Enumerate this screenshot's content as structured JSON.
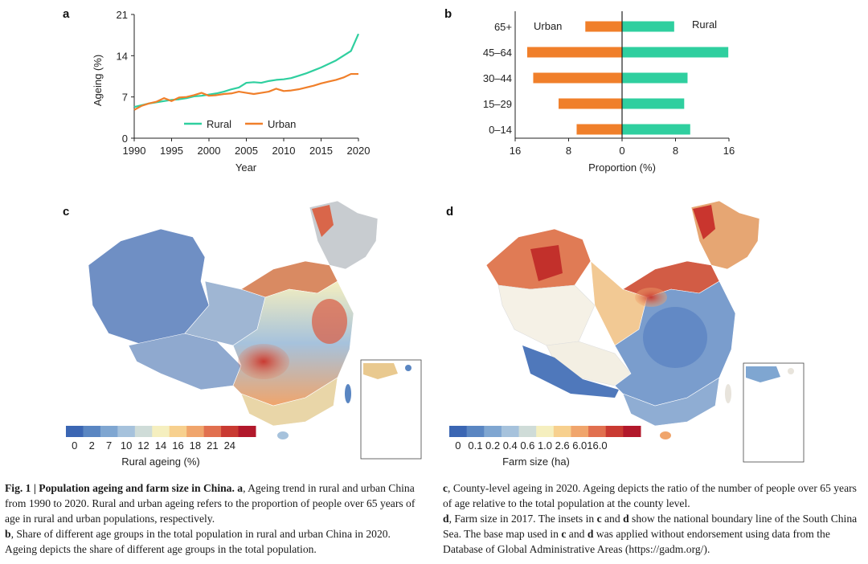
{
  "panels": {
    "a": "a",
    "b": "b",
    "c": "c",
    "d": "d"
  },
  "chart_data": [
    {
      "type": "line",
      "panel": "a",
      "xlabel": "Year",
      "ylabel": "Ageing (%)",
      "xlim": [
        1990,
        2020
      ],
      "ylim": [
        0,
        21
      ],
      "xticks": [
        "1990",
        "1995",
        "2000",
        "2005",
        "2010",
        "2015",
        "2020"
      ],
      "yticks": [
        "0",
        "7",
        "14",
        "21"
      ],
      "x": [
        1990,
        1991,
        1992,
        1993,
        1994,
        1995,
        1996,
        1997,
        1998,
        1999,
        2000,
        2001,
        2002,
        2003,
        2004,
        2005,
        2006,
        2007,
        2008,
        2009,
        2010,
        2011,
        2012,
        2013,
        2014,
        2015,
        2016,
        2017,
        2018,
        2019,
        2020
      ],
      "series": [
        {
          "name": "Rural",
          "color": "#2fcf9f",
          "values": [
            5.3,
            5.6,
            5.9,
            6.1,
            6.3,
            6.5,
            6.6,
            6.8,
            7.1,
            7.2,
            7.4,
            7.6,
            7.9,
            8.3,
            8.6,
            9.4,
            9.5,
            9.4,
            9.7,
            9.9,
            10.0,
            10.2,
            10.6,
            11.0,
            11.5,
            12.0,
            12.6,
            13.2,
            14.0,
            14.8,
            17.7
          ]
        },
        {
          "name": "Urban",
          "color": "#f07f2a",
          "values": [
            4.8,
            5.5,
            5.9,
            6.2,
            6.8,
            6.3,
            6.9,
            7.0,
            7.3,
            7.7,
            7.2,
            7.3,
            7.5,
            7.6,
            7.9,
            7.7,
            7.5,
            7.7,
            7.9,
            8.4,
            8.0,
            8.1,
            8.3,
            8.6,
            8.9,
            9.3,
            9.6,
            9.9,
            10.3,
            10.9,
            10.9
          ]
        }
      ],
      "legend": [
        {
          "label": "Rural",
          "color": "#2fcf9f"
        },
        {
          "label": "Urban",
          "color": "#f07f2a"
        }
      ]
    },
    {
      "type": "bar",
      "panel": "b",
      "orientation": "horizontal",
      "xlabel": "Proportion (%)",
      "xticks": [
        "16",
        "8",
        "0",
        "8",
        "16"
      ],
      "categories": [
        "65+",
        "45–64",
        "30–44",
        "15–29",
        "0–14"
      ],
      "series": [
        {
          "name": "Urban",
          "color": "#f07f2a",
          "values": [
            5.5,
            14.2,
            13.3,
            9.5,
            6.8
          ]
        },
        {
          "name": "Rural",
          "color": "#2fcf9f",
          "values": [
            7.8,
            15.9,
            9.8,
            9.3,
            10.2
          ]
        }
      ],
      "xlim": [
        -16,
        16
      ]
    }
  ],
  "legend_c": {
    "title": "Rural ageing (%)",
    "labels": [
      "0",
      "2",
      "7",
      "10",
      "12",
      "14",
      "16",
      "18",
      "21",
      "24"
    ],
    "colors": [
      "#3b66b3",
      "#5a86c2",
      "#7fa6d1",
      "#a6c2dc",
      "#cfdcd8",
      "#f5efbf",
      "#f7d08e",
      "#f0a56c",
      "#e1704f",
      "#c93a32",
      "#b2182b"
    ]
  },
  "legend_d": {
    "title": "Farm size (ha)",
    "labels": [
      "0",
      "0.1",
      "0.2",
      "0.4",
      "0.6",
      "1.0",
      "2.6",
      "6.0",
      "16.0"
    ],
    "colors": [
      "#3b66b3",
      "#5a86c2",
      "#7fa6d1",
      "#a6c2dc",
      "#cfdcd8",
      "#f5efbf",
      "#f7d08e",
      "#f0a56c",
      "#e1704f",
      "#c93a32",
      "#b2182b"
    ]
  },
  "caption": {
    "fig_label": "Fig. 1 | Population ageing and farm size in China.",
    "a_label": "a",
    "a_text": ", Ageing trend in rural and urban China from 1990 to 2020. Rural and urban ageing refers to the proportion of people over 65 years of age in rural and urban populations, respectively.",
    "b_label": "b",
    "b_text": ", Share of different age groups in the total population in rural and urban China in 2020. Ageing depicts the share of different age groups in the total population.",
    "c_label": "c",
    "c_text": ", County-level ageing in 2020. Ageing depicts the ratio of the number of people over 65 years of age relative to the total population at the county level.",
    "d_label": "d",
    "d_text": ", Farm size in 2017. The insets in ",
    "d_c": "c",
    "d_and": " and ",
    "d_d": "d",
    "d_text2": " show the national boundary line of the South China Sea. The base map used in ",
    "d_c2": "c",
    "d_and2": " and ",
    "d_d2": "d",
    "d_text3": " was applied without endorsement using data from the Database of Global Administrative Areas (https://gadm.org/)."
  }
}
